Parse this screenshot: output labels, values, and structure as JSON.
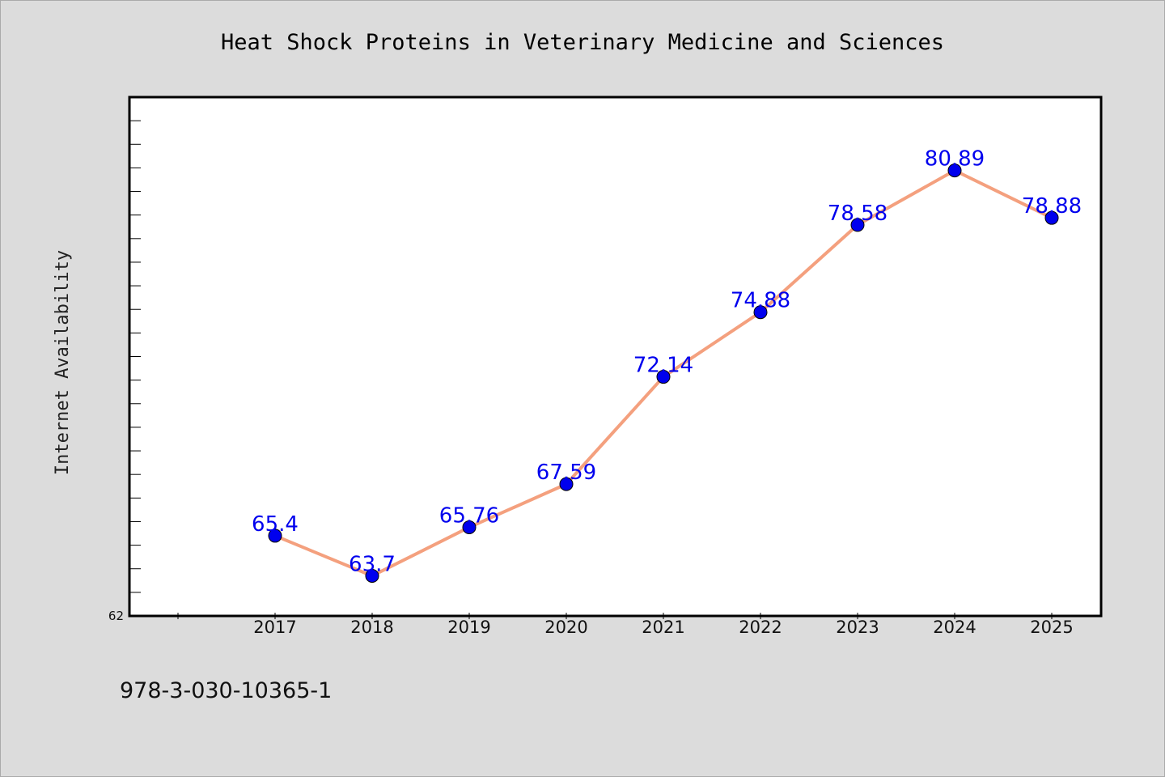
{
  "chart_data": {
    "type": "line",
    "title": "Heat Shock Proteins in Veterinary Medicine and Sciences",
    "ylabel": "Internet Availability",
    "xlabel": "",
    "categories": [
      "2017",
      "2018",
      "2019",
      "2020",
      "2021",
      "2022",
      "2023",
      "2024",
      "2025"
    ],
    "values": [
      65.4,
      63.7,
      65.76,
      67.59,
      72.14,
      74.88,
      78.58,
      80.89,
      78.88
    ],
    "value_labels": [
      "65.4",
      "63.7",
      "65.76",
      "67.59",
      "72.14",
      "74.88",
      "78.58",
      "80.89",
      "78.88"
    ],
    "y_min_label": "62",
    "ylim": [
      62,
      84
    ],
    "grid": false,
    "legend": "none",
    "colors": {
      "line": "#f4a07e",
      "marker": "#0000ee",
      "label": "#0000ee",
      "background": "#dcdcdc",
      "plot_bg": "#ffffff"
    }
  },
  "footer": {
    "isbn": "978-3-030-10365-1"
  }
}
